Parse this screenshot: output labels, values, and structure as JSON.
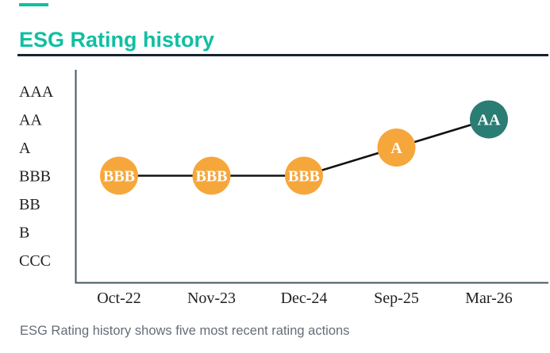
{
  "header": {
    "title": "ESG Rating history",
    "accent_color": "#10BFA3",
    "rule_color": "#18242F"
  },
  "caption": {
    "text": "ESG Rating history shows five most recent rating actions",
    "color": "#666D78"
  },
  "chart_data": {
    "type": "line",
    "title": "ESG Rating history",
    "categories": [
      "Oct-22",
      "Nov-23",
      "Dec-24",
      "Sep-25",
      "Mar-26"
    ],
    "values": [
      "BBB",
      "BBB",
      "BBB",
      "A",
      "AA"
    ],
    "y_scale_top_to_bottom": [
      "AAA",
      "AA",
      "A",
      "BBB",
      "BB",
      "B",
      "CCC"
    ],
    "point_colors": [
      "#F6A73C",
      "#F6A73C",
      "#F6A73C",
      "#F6A73C",
      "#2A7D73"
    ],
    "point_label_color": "#FFFFFF",
    "line_color": "#111111",
    "axis_color": "#46565F",
    "tick_label_color": "#1F1F1F",
    "grid": false,
    "legend": false,
    "xlabel": "",
    "ylabel": ""
  }
}
